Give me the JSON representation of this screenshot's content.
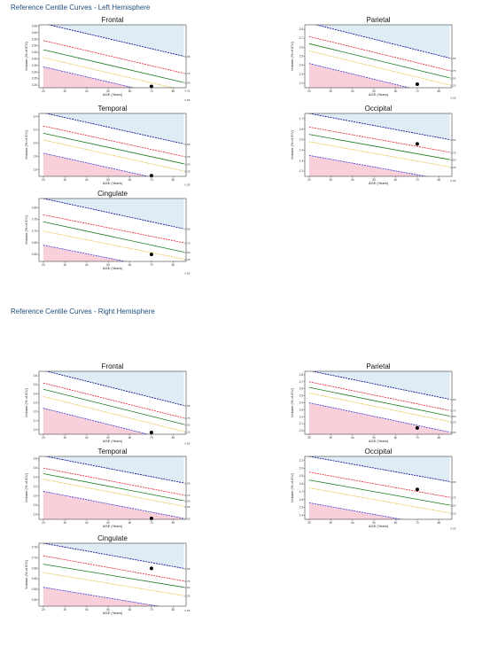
{
  "sections": [
    {
      "title": "Reference Centile Curves - Left Hemisphere"
    },
    {
      "title": "Reference Centile Curves - Right Hemisphere"
    }
  ],
  "common": {
    "xlabel": "AGE (Years)",
    "xticks": [
      20,
      30,
      40,
      50,
      60,
      70,
      80
    ],
    "xlim": [
      18,
      86
    ],
    "centile_labels": [
      "0.95",
      "0.75",
      "0.50",
      "0.25",
      "0.05"
    ],
    "colors": {
      "upper_fill": "#deecf6",
      "lower_fill": "#f9d0da",
      "p95": "#00008b",
      "p75": "#e81c2e",
      "p50": "#1a7a1a",
      "p25": "#e6c040",
      "p05": "#3b3bd6",
      "patient": "#000000",
      "title": "#1f4e79"
    }
  },
  "chart_data": [
    {
      "type": "line",
      "hemisphere": "Left",
      "title": "Frontal",
      "xlabel": "AGE (Years)",
      "ylabel": "Volume (% of ICV)",
      "yticks": [
        "3.20",
        "3.25",
        "3.30",
        "3.35",
        "3.40",
        "3.45",
        "3.50",
        "3.55",
        "3.60",
        "3.65"
      ],
      "ylim": [
        3.18,
        3.66
      ],
      "centiles": {
        "0.95": [
          3.67,
          3.42
        ],
        "0.75": [
          3.54,
          3.29
        ],
        "0.50": [
          3.47,
          3.22
        ],
        "0.25": [
          3.41,
          3.16
        ],
        "0.05": [
          3.34,
          3.09
        ]
      },
      "patient": {
        "x": 70,
        "y": 3.19
      }
    },
    {
      "type": "line",
      "hemisphere": "Left",
      "title": "Parietal",
      "xlabel": "AGE (Years)",
      "ylabel": "Volume (% of ICV)",
      "yticks": [
        "2.2",
        "2.3",
        "2.4",
        "2.5",
        "2.6",
        "2.7",
        "2.8"
      ],
      "ylim": [
        2.15,
        2.85
      ],
      "centiles": {
        "0.95": [
          2.87,
          2.48
        ],
        "0.75": [
          2.72,
          2.34
        ],
        "0.50": [
          2.64,
          2.26
        ],
        "0.25": [
          2.56,
          2.18
        ],
        "0.05": [
          2.42,
          2.04
        ]
      },
      "patient": {
        "x": 70,
        "y": 2.19
      }
    },
    {
      "type": "line",
      "hemisphere": "Left",
      "title": "Temporal",
      "xlabel": "AGE (Years)",
      "ylabel": "Volume (% of ICV)",
      "yticks": [
        "2.6",
        "2.8",
        "3.0",
        "3.2",
        "3.4"
      ],
      "ylim": [
        2.5,
        3.45
      ],
      "centiles": {
        "0.95": [
          3.46,
          2.99
        ],
        "0.75": [
          3.26,
          2.8
        ],
        "0.50": [
          3.15,
          2.69
        ],
        "0.25": [
          3.05,
          2.58
        ],
        "0.05": [
          2.85,
          2.38
        ]
      },
      "patient": {
        "x": 70,
        "y": 2.51
      }
    },
    {
      "type": "line",
      "hemisphere": "Left",
      "title": "Occipital",
      "xlabel": "AGE (Years)",
      "ylabel": "Volume (% of ICV)",
      "yticks": [
        "1.2",
        "1.3",
        "1.4",
        "1.5",
        "1.6",
        "1.7"
      ],
      "ylim": [
        1.15,
        1.75
      ],
      "centiles": {
        "0.95": [
          1.75,
          1.5
        ],
        "0.75": [
          1.62,
          1.38
        ],
        "0.50": [
          1.55,
          1.31
        ],
        "0.25": [
          1.48,
          1.24
        ],
        "0.05": [
          1.35,
          1.11
        ]
      },
      "patient": {
        "x": 70,
        "y": 1.46
      }
    },
    {
      "type": "line",
      "hemisphere": "Left",
      "title": "Cingulate",
      "xlabel": "AGE (Years)",
      "ylabel": "Volume (% of ICV)",
      "yticks": [
        "0.60",
        "0.65",
        "0.70",
        "0.75",
        "0.80"
      ],
      "ylim": [
        0.57,
        0.84
      ],
      "centiles": {
        "0.95": [
          0.84,
          0.71
        ],
        "0.75": [
          0.77,
          0.65
        ],
        "0.50": [
          0.74,
          0.61
        ],
        "0.25": [
          0.7,
          0.58
        ],
        "0.05": [
          0.64,
          0.52
        ]
      },
      "patient": {
        "x": 70,
        "y": 0.6
      }
    },
    {
      "type": "line",
      "hemisphere": "Right",
      "title": "Frontal",
      "xlabel": "AGE (Years)",
      "ylabel": "Volume (% of ICV)",
      "yticks": [
        "3.0",
        "3.1",
        "3.2",
        "3.3",
        "3.4",
        "3.5",
        "3.6"
      ],
      "ylim": [
        2.95,
        3.65
      ],
      "centiles": {
        "0.95": [
          3.66,
          3.27
        ],
        "0.75": [
          3.52,
          3.13
        ],
        "0.50": [
          3.45,
          3.06
        ],
        "0.25": [
          3.37,
          2.98
        ],
        "0.05": [
          3.24,
          2.85
        ]
      },
      "patient": {
        "x": 70,
        "y": 2.97
      }
    },
    {
      "type": "line",
      "hemisphere": "Right",
      "title": "Parietal",
      "xlabel": "AGE (Years)",
      "ylabel": "Volume (% of ICV)",
      "yticks": [
        "2.0",
        "2.1",
        "2.2",
        "2.3",
        "2.4",
        "2.5",
        "2.6",
        "2.7",
        "2.8"
      ],
      "ylim": [
        1.95,
        2.85
      ],
      "centiles": {
        "0.95": [
          2.86,
          2.45
        ],
        "0.75": [
          2.7,
          2.29
        ],
        "0.50": [
          2.62,
          2.21
        ],
        "0.25": [
          2.54,
          2.13
        ],
        "0.05": [
          2.4,
          1.98
        ]
      },
      "patient": {
        "x": 70,
        "y": 2.04
      }
    },
    {
      "type": "line",
      "hemisphere": "Right",
      "title": "Temporal",
      "xlabel": "AGE (Years)",
      "ylabel": "Volume (% of ICV)",
      "yticks": [
        "2.6",
        "2.8",
        "3.0",
        "3.2",
        "3.4",
        "3.6",
        "3.8"
      ],
      "ylim": [
        2.5,
        3.85
      ],
      "centiles": {
        "0.95": [
          3.86,
          3.28
        ],
        "0.75": [
          3.6,
          3.02
        ],
        "0.50": [
          3.48,
          2.9
        ],
        "0.25": [
          3.36,
          2.78
        ],
        "0.05": [
          3.1,
          2.52
        ]
      },
      "patient": {
        "x": 70,
        "y": 2.52
      }
    },
    {
      "type": "line",
      "hemisphere": "Right",
      "title": "Occipital",
      "xlabel": "AGE (Years)",
      "ylabel": "Volume (% of ICV)",
      "yticks": [
        "1.4",
        "1.5",
        "1.6",
        "1.7",
        "1.8",
        "1.9",
        "2.0",
        "2.1"
      ],
      "ylim": [
        1.35,
        2.15
      ],
      "centiles": {
        "0.95": [
          2.15,
          1.83
        ],
        "0.75": [
          1.95,
          1.63
        ],
        "0.50": [
          1.85,
          1.53
        ],
        "0.25": [
          1.75,
          1.43
        ],
        "0.05": [
          1.56,
          1.24
        ]
      },
      "patient": {
        "x": 70,
        "y": 1.73
      }
    },
    {
      "type": "line",
      "hemisphere": "Right",
      "title": "Cingulate",
      "xlabel": "AGE (Years)",
      "ylabel": "Volume (% of ICV)",
      "yticks": [
        "0.50",
        "0.55",
        "0.60",
        "0.65",
        "0.70",
        "0.75"
      ],
      "ylim": [
        0.47,
        0.77
      ],
      "centiles": {
        "0.95": [
          0.77,
          0.65
        ],
        "0.75": [
          0.71,
          0.59
        ],
        "0.50": [
          0.67,
          0.56
        ],
        "0.25": [
          0.63,
          0.52
        ],
        "0.05": [
          0.56,
          0.45
        ]
      },
      "patient": {
        "x": 70,
        "y": 0.65
      }
    }
  ]
}
